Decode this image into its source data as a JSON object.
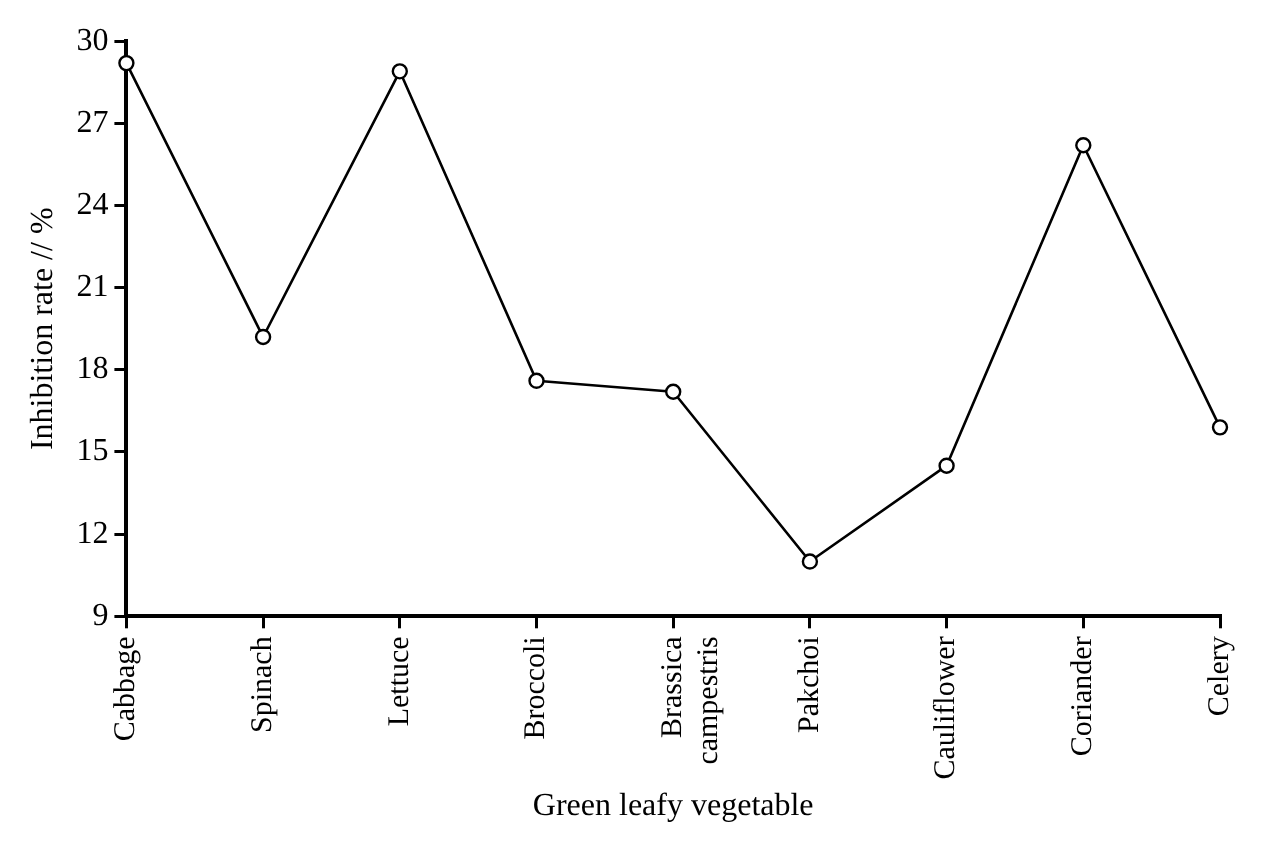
{
  "chart_data": {
    "type": "line",
    "xlabel": "Green leafy vegetable",
    "ylabel": "Inhibition rate // %",
    "categories": [
      "Cabbage",
      "Spinach",
      "Lettuce",
      "Broccoli",
      "Brassica campestris",
      "Pakchoi",
      "Cauliflower",
      "Coriander",
      "Celery"
    ],
    "series": [
      {
        "color": "#000000",
        "values": [
          29.2,
          19.2,
          28.9,
          17.6,
          17.2,
          11.0,
          14.5,
          26.2,
          15.9
        ]
      }
    ],
    "ylim": [
      9,
      30
    ],
    "yticks": [
      9,
      12,
      15,
      18,
      21,
      24,
      27,
      30
    ],
    "grid": false,
    "legend": false,
    "marker": "circle",
    "line_style": "solid"
  }
}
